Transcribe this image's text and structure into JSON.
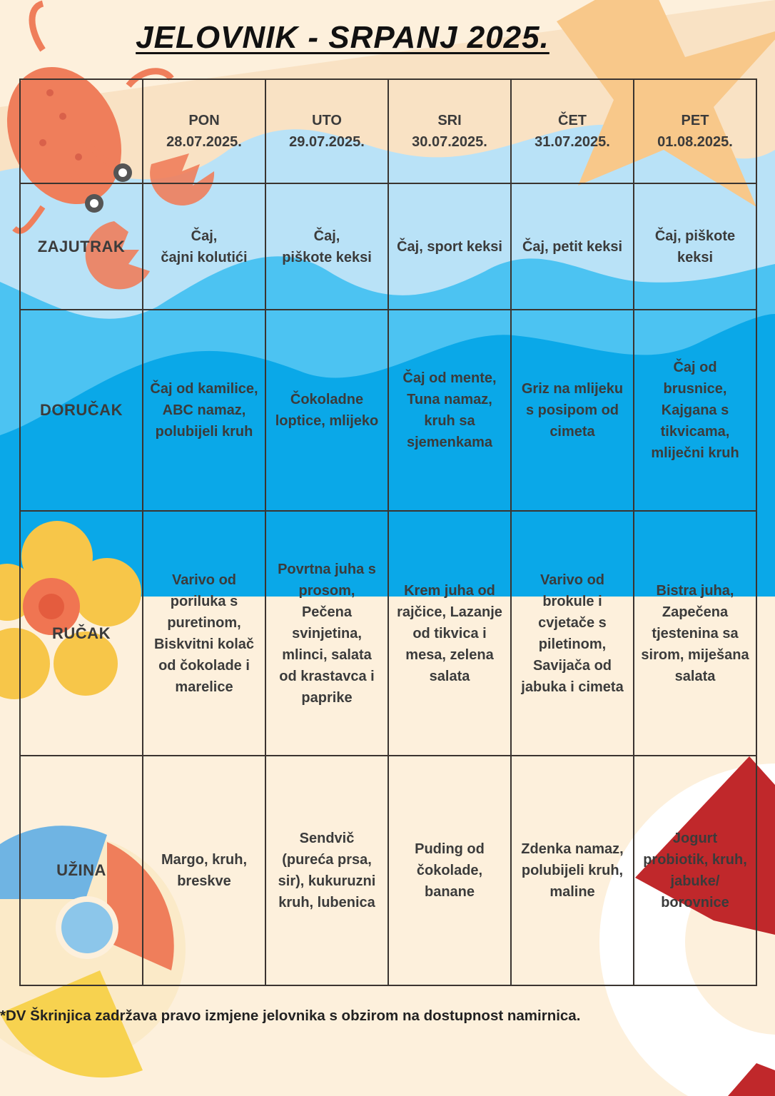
{
  "title": "JELOVNIK - SRPANJ 2025.",
  "days": [
    {
      "name": "PON",
      "date": "28.07.2025."
    },
    {
      "name": "UTO",
      "date": "29.07.2025."
    },
    {
      "name": "SRI",
      "date": "30.07.2025."
    },
    {
      "name": "ČET",
      "date": "31.07.2025."
    },
    {
      "name": "PET",
      "date": "01.08.2025."
    }
  ],
  "meals": [
    {
      "label": "ZAJUTRAK",
      "items": [
        "Čaj,\nčajni kolutići",
        "Čaj,\npiškote keksi",
        "Čaj, sport keksi",
        "Čaj, petit keksi",
        "Čaj, piškote\nkeksi"
      ]
    },
    {
      "label": "DORUČAK",
      "items": [
        "Čaj od kamilice,\nABC namaz,\npolubijeli kruh",
        "Čokoladne\nloptice, mlijeko",
        "Čaj od mente,\nTuna namaz,\nkruh sa\nsjemenkama",
        "Griz na mlijeku\ns posipom od\ncimeta",
        "Čaj od\nbrusnice,\nKajgana s\ntikvicama,\nmliječni kruh"
      ]
    },
    {
      "label": "RUČAK",
      "items": [
        "Varivo od\nporiluka s\npuretinom,\nBiskvitni kolač\nod čokolade i\nmarelice",
        "Povrtna juha s\nprosom,\nPečena\nsvinjetina,\nmlinci, salata\nod krastavca i\npaprike",
        "Krem juha od\nrajčice, Lazanje\nod tikvica i\nmesa, zelena\nsalata",
        "Varivo od\nbrokule i\ncvjetače s\npiletinom,\nSavijača od\njabuka i cimeta",
        "Bistra juha,\nZapečena\ntjestenina sa\nsirom, miješana\nsalata"
      ]
    },
    {
      "label": "UŽINA",
      "items": [
        "Margo, kruh,\nbreskve",
        "Sendvič\n(pureća prsa,\nsir),  kukuruzni\nkruh, lubenica",
        "Puding od\nčokolade,\nbanane",
        "Zdenka namaz,\npolubijeli kruh,\nmaline",
        "Jogurt\nprobiotik, kruh,\njabuke/\nborovnice"
      ]
    }
  ],
  "footnote": "*DV Škrinjica zadržava pravo izmjene jelovnika s obzirom na dostupnost namirnica.",
  "colors": {
    "background": "#fdf0dc",
    "sand": "#f9e2c4",
    "wave_light": "#b9e2f7",
    "wave_mid": "#4cc3f2",
    "wave_deep": "#0aa8e8",
    "crab": "#ef7e5b",
    "starfish": "#f8c88a",
    "flower": "#f7c649",
    "lifebuoy": "#c0282b"
  },
  "icons": [
    "crab-icon",
    "starfish-icon",
    "flower-icon",
    "beach-ball-icon",
    "lifebuoy-icon"
  ]
}
